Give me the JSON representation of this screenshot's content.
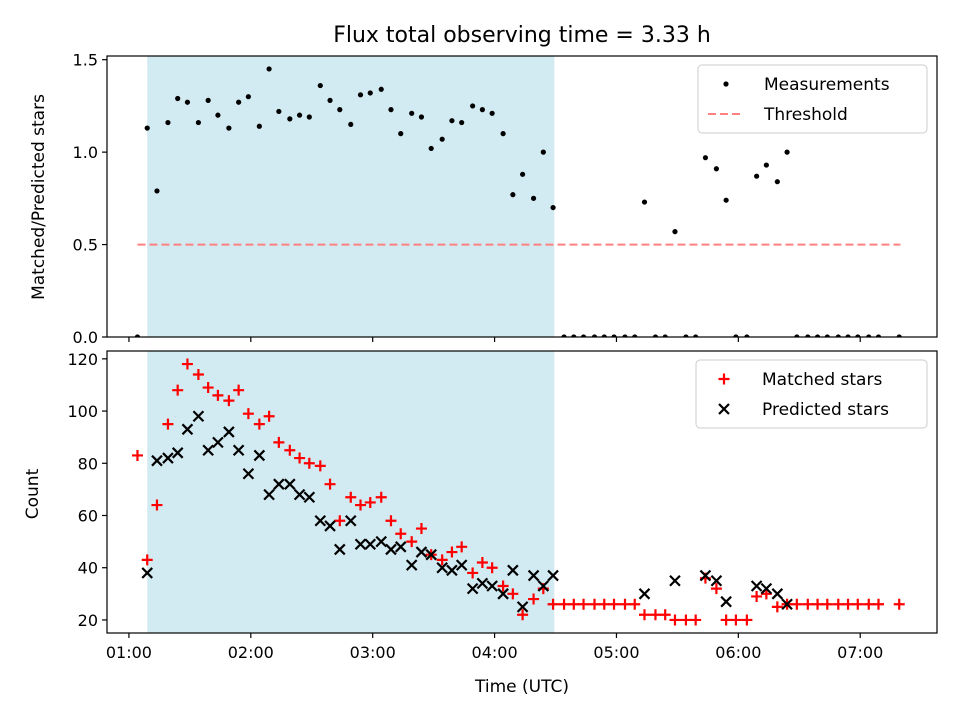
{
  "figure": {
    "title": "Flux total observing time = 3.33 h"
  },
  "chart_data": [
    {
      "type": "scatter",
      "panel": "top",
      "ylabel": "Matched/Predicted stars",
      "x_unit": "hours UTC",
      "xlim": [
        0.82,
        7.63
      ],
      "ylim": [
        0,
        1.52
      ],
      "yticks": [
        0.0,
        0.5,
        1.0,
        1.5
      ],
      "ytick_labels": [
        "0.0",
        "0.5",
        "1.0",
        "1.5"
      ],
      "grid": false,
      "legend_position": "top-right",
      "shaded_interval": {
        "start": 1.15,
        "end": 4.49,
        "color": "#add8e6"
      },
      "threshold": {
        "name": "Threshold",
        "value": 0.5,
        "x_range": [
          1.07,
          7.33
        ],
        "color": "#ff8080"
      },
      "series": [
        {
          "name": "Measurements",
          "color": "#000000",
          "marker": "dot",
          "points": [
            [
              1.07,
              0.0
            ],
            [
              1.15,
              1.13
            ],
            [
              1.23,
              0.79
            ],
            [
              1.32,
              1.16
            ],
            [
              1.4,
              1.29
            ],
            [
              1.48,
              1.27
            ],
            [
              1.57,
              1.16
            ],
            [
              1.65,
              1.28
            ],
            [
              1.73,
              1.2
            ],
            [
              1.82,
              1.13
            ],
            [
              1.9,
              1.27
            ],
            [
              1.98,
              1.3
            ],
            [
              2.07,
              1.14
            ],
            [
              2.15,
              1.45
            ],
            [
              2.23,
              1.22
            ],
            [
              2.32,
              1.18
            ],
            [
              2.4,
              1.2
            ],
            [
              2.48,
              1.19
            ],
            [
              2.57,
              1.36
            ],
            [
              2.65,
              1.28
            ],
            [
              2.73,
              1.23
            ],
            [
              2.82,
              1.15
            ],
            [
              2.9,
              1.31
            ],
            [
              2.98,
              1.32
            ],
            [
              3.07,
              1.34
            ],
            [
              3.15,
              1.23
            ],
            [
              3.23,
              1.1
            ],
            [
              3.32,
              1.21
            ],
            [
              3.4,
              1.19
            ],
            [
              3.48,
              1.02
            ],
            [
              3.57,
              1.07
            ],
            [
              3.65,
              1.17
            ],
            [
              3.73,
              1.16
            ],
            [
              3.82,
              1.25
            ],
            [
              3.9,
              1.23
            ],
            [
              3.98,
              1.21
            ],
            [
              4.07,
              1.1
            ],
            [
              4.15,
              0.77
            ],
            [
              4.23,
              0.88
            ],
            [
              4.32,
              0.75
            ],
            [
              4.4,
              1.0
            ],
            [
              4.48,
              0.7
            ],
            [
              4.57,
              0.0
            ],
            [
              4.65,
              0.0
            ],
            [
              4.73,
              0.0
            ],
            [
              4.82,
              0.0
            ],
            [
              4.9,
              0.0
            ],
            [
              4.98,
              0.0
            ],
            [
              5.07,
              0.0
            ],
            [
              5.15,
              0.0
            ],
            [
              5.23,
              0.73
            ],
            [
              5.32,
              0.0
            ],
            [
              5.4,
              0.0
            ],
            [
              5.48,
              0.57
            ],
            [
              5.57,
              0.0
            ],
            [
              5.65,
              0.0
            ],
            [
              5.73,
              0.97
            ],
            [
              5.82,
              0.91
            ],
            [
              5.9,
              0.74
            ],
            [
              5.98,
              0.0
            ],
            [
              6.07,
              0.0
            ],
            [
              6.15,
              0.87
            ],
            [
              6.23,
              0.93
            ],
            [
              6.32,
              0.84
            ],
            [
              6.4,
              1.0
            ],
            [
              6.48,
              0.0
            ],
            [
              6.57,
              0.0
            ],
            [
              6.65,
              0.0
            ],
            [
              6.73,
              0.0
            ],
            [
              6.82,
              0.0
            ],
            [
              6.9,
              0.0
            ],
            [
              6.98,
              0.0
            ],
            [
              7.07,
              0.0
            ],
            [
              7.15,
              0.0
            ],
            [
              7.32,
              0.0
            ]
          ]
        }
      ]
    },
    {
      "type": "scatter",
      "panel": "bottom",
      "xlabel": "Time (UTC)",
      "ylabel": "Count",
      "x_unit": "hours UTC",
      "xlim": [
        0.82,
        7.63
      ],
      "ylim": [
        15,
        123
      ],
      "xticks": [
        1,
        2,
        3,
        4,
        5,
        6,
        7
      ],
      "xtick_labels": [
        "01:00",
        "02:00",
        "03:00",
        "04:00",
        "05:00",
        "06:00",
        "07:00"
      ],
      "yticks": [
        20,
        40,
        60,
        80,
        100,
        120
      ],
      "ytick_labels": [
        "20",
        "40",
        "60",
        "80",
        "100",
        "120"
      ],
      "grid": false,
      "legend_position": "top-right",
      "shaded_interval": {
        "start": 1.15,
        "end": 4.49,
        "color": "#add8e6"
      },
      "series": [
        {
          "name": "Matched stars",
          "color": "#ff0000",
          "marker": "plus",
          "points": [
            [
              1.07,
              83
            ],
            [
              1.15,
              43
            ],
            [
              1.23,
              64
            ],
            [
              1.32,
              95
            ],
            [
              1.4,
              108
            ],
            [
              1.48,
              118
            ],
            [
              1.57,
              114
            ],
            [
              1.65,
              109
            ],
            [
              1.73,
              106
            ],
            [
              1.82,
              104
            ],
            [
              1.9,
              108
            ],
            [
              1.98,
              99
            ],
            [
              2.07,
              95
            ],
            [
              2.15,
              98
            ],
            [
              2.23,
              88
            ],
            [
              2.32,
              85
            ],
            [
              2.4,
              82
            ],
            [
              2.48,
              80
            ],
            [
              2.57,
              79
            ],
            [
              2.65,
              72
            ],
            [
              2.73,
              58
            ],
            [
              2.82,
              67
            ],
            [
              2.9,
              64
            ],
            [
              2.98,
              65
            ],
            [
              3.07,
              67
            ],
            [
              3.15,
              58
            ],
            [
              3.23,
              53
            ],
            [
              3.32,
              50
            ],
            [
              3.4,
              55
            ],
            [
              3.48,
              45
            ],
            [
              3.57,
              43
            ],
            [
              3.65,
              46
            ],
            [
              3.73,
              48
            ],
            [
              3.82,
              38
            ],
            [
              3.9,
              42
            ],
            [
              3.98,
              40
            ],
            [
              4.07,
              33
            ],
            [
              4.15,
              30
            ],
            [
              4.23,
              22
            ],
            [
              4.32,
              28
            ],
            [
              4.4,
              32
            ],
            [
              4.48,
              26
            ],
            [
              4.57,
              26
            ],
            [
              4.65,
              26
            ],
            [
              4.73,
              26
            ],
            [
              4.82,
              26
            ],
            [
              4.9,
              26
            ],
            [
              4.98,
              26
            ],
            [
              5.07,
              26
            ],
            [
              5.15,
              26
            ],
            [
              5.23,
              22
            ],
            [
              5.32,
              22
            ],
            [
              5.4,
              22
            ],
            [
              5.48,
              20
            ],
            [
              5.57,
              20
            ],
            [
              5.65,
              20
            ],
            [
              5.73,
              36
            ],
            [
              5.82,
              32
            ],
            [
              5.9,
              20
            ],
            [
              5.98,
              20
            ],
            [
              6.07,
              20
            ],
            [
              6.15,
              29
            ],
            [
              6.23,
              30
            ],
            [
              6.32,
              25
            ],
            [
              6.4,
              26
            ],
            [
              6.48,
              26
            ],
            [
              6.57,
              26
            ],
            [
              6.65,
              26
            ],
            [
              6.73,
              26
            ],
            [
              6.82,
              26
            ],
            [
              6.9,
              26
            ],
            [
              6.98,
              26
            ],
            [
              7.07,
              26
            ],
            [
              7.15,
              26
            ],
            [
              7.32,
              26
            ]
          ]
        },
        {
          "name": "Predicted stars",
          "color": "#000000",
          "marker": "x",
          "points": [
            [
              1.15,
              38
            ],
            [
              1.23,
              81
            ],
            [
              1.32,
              82
            ],
            [
              1.4,
              84
            ],
            [
              1.48,
              93
            ],
            [
              1.57,
              98
            ],
            [
              1.65,
              85
            ],
            [
              1.73,
              88
            ],
            [
              1.82,
              92
            ],
            [
              1.9,
              85
            ],
            [
              1.98,
              76
            ],
            [
              2.07,
              83
            ],
            [
              2.15,
              68
            ],
            [
              2.23,
              72
            ],
            [
              2.32,
              72
            ],
            [
              2.4,
              68
            ],
            [
              2.48,
              67
            ],
            [
              2.57,
              58
            ],
            [
              2.65,
              56
            ],
            [
              2.73,
              47
            ],
            [
              2.82,
              58
            ],
            [
              2.9,
              49
            ],
            [
              2.98,
              49
            ],
            [
              3.07,
              50
            ],
            [
              3.15,
              47
            ],
            [
              3.23,
              48
            ],
            [
              3.32,
              41
            ],
            [
              3.4,
              46
            ],
            [
              3.48,
              45
            ],
            [
              3.57,
              40
            ],
            [
              3.65,
              39
            ],
            [
              3.73,
              41
            ],
            [
              3.82,
              32
            ],
            [
              3.9,
              34
            ],
            [
              3.98,
              33
            ],
            [
              4.07,
              30
            ],
            [
              4.15,
              39
            ],
            [
              4.23,
              25
            ],
            [
              4.32,
              37
            ],
            [
              4.4,
              33
            ],
            [
              4.48,
              37
            ],
            [
              5.23,
              30
            ],
            [
              5.48,
              35
            ],
            [
              5.73,
              37
            ],
            [
              5.82,
              35
            ],
            [
              5.9,
              27
            ],
            [
              6.15,
              33
            ],
            [
              6.23,
              32
            ],
            [
              6.32,
              30
            ],
            [
              6.4,
              26
            ]
          ]
        }
      ]
    }
  ]
}
